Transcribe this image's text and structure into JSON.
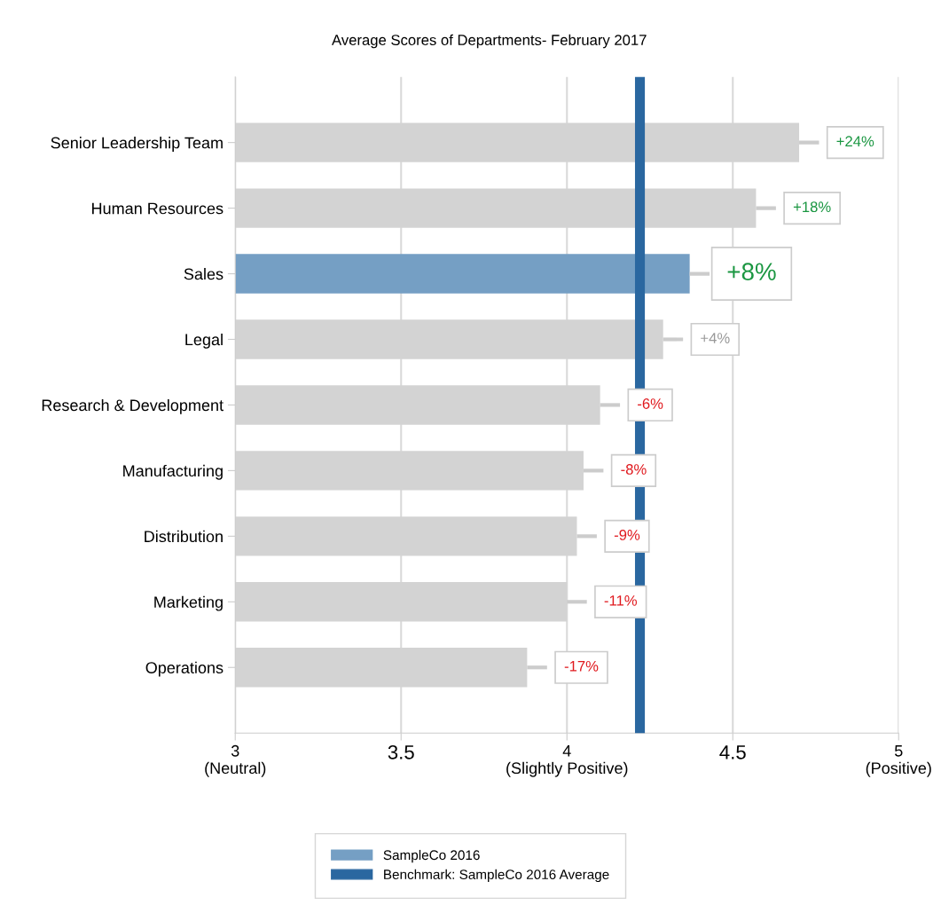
{
  "chart_data": {
    "type": "bar",
    "orientation": "horizontal",
    "subtitle": "Average Scores of Departments- February 2017",
    "categories": [
      "Senior Leadership Team",
      "Human Resources",
      "Sales",
      "Legal",
      "Research & Development",
      "Manufacturing",
      "Distribution",
      "Marketing",
      "Operations"
    ],
    "series": [
      {
        "name": "SampleCo 2016",
        "color": "#759fc4",
        "values": [
          4.7,
          4.57,
          4.37,
          4.29,
          4.1,
          4.05,
          4.03,
          4.0,
          3.88
        ],
        "colors": [
          "#d3d3d3",
          "#d3d3d3",
          "#759fc4",
          "#d3d3d3",
          "#d3d3d3",
          "#d3d3d3",
          "#d3d3d3",
          "#d3d3d3",
          "#d3d3d3"
        ]
      }
    ],
    "annotations": [
      {
        "text": "+24%",
        "x": 4.7,
        "y": "Senior Leadership Team"
      },
      {
        "text": "+18%",
        "x": 4.57,
        "y": "Human Resources"
      },
      {
        "text": "+8%",
        "x": 4.37,
        "y": "Sales"
      },
      {
        "text": "+4%",
        "x": 4.29,
        "y": "Legal"
      },
      {
        "text": "-6%",
        "x": 4.1,
        "y": "Research & Development"
      },
      {
        "text": "-8%",
        "x": 4.05,
        "y": "Manufacturing"
      },
      {
        "text": "-9%",
        "x": 4.03,
        "y": "Distribution"
      },
      {
        "text": "-11%",
        "x": 4.0,
        "y": "Marketing"
      },
      {
        "text": "-17%",
        "x": 3.88,
        "y": "Operations"
      }
    ],
    "ref_lines": [
      {
        "axis": "x",
        "value": 4.22,
        "label": "Benchmark: SampleCo 2016 Average",
        "color": "#2a67a0"
      }
    ],
    "xlim": [
      3,
      5
    ],
    "xticks": [
      {
        "value": 3,
        "label": "3\n(Neutral)"
      },
      3.5,
      {
        "value": 4,
        "label": "4\n(Slightly Positive)"
      },
      4.5,
      {
        "value": 5,
        "label": "5\n(Positive)"
      }
    ],
    "grid": "x",
    "legend": "bottom"
  }
}
